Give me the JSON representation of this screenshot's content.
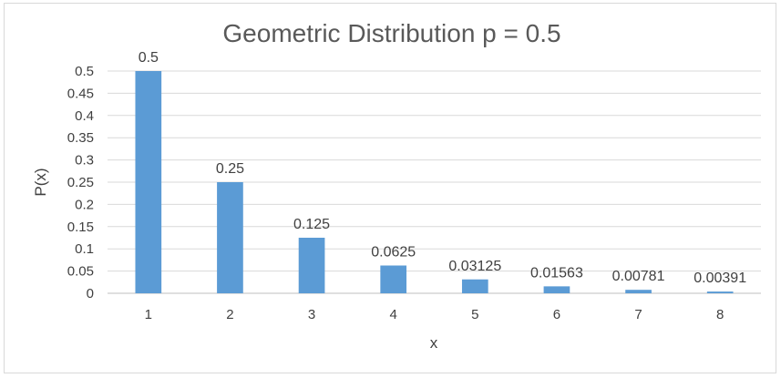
{
  "chart_data": {
    "type": "bar",
    "title": "Geometric Distribution p = 0.5",
    "xlabel": "x",
    "ylabel": "P(x)",
    "categories": [
      "1",
      "2",
      "3",
      "4",
      "5",
      "6",
      "7",
      "8"
    ],
    "values": [
      0.5,
      0.25,
      0.125,
      0.0625,
      0.03125,
      0.01563,
      0.00781,
      0.00391
    ],
    "data_labels": [
      "0.5",
      "0.25",
      "0.125",
      "0.0625",
      "0.03125",
      "0.01563",
      "0.00781",
      "0.00391"
    ],
    "ylim": [
      0,
      0.5
    ],
    "yticks": [
      "0",
      "0.05",
      "0.1",
      "0.15",
      "0.2",
      "0.25",
      "0.3",
      "0.35",
      "0.4",
      "0.45",
      "0.5"
    ],
    "grid": true,
    "legend": "none",
    "bar_color": "#5b9bd5"
  }
}
